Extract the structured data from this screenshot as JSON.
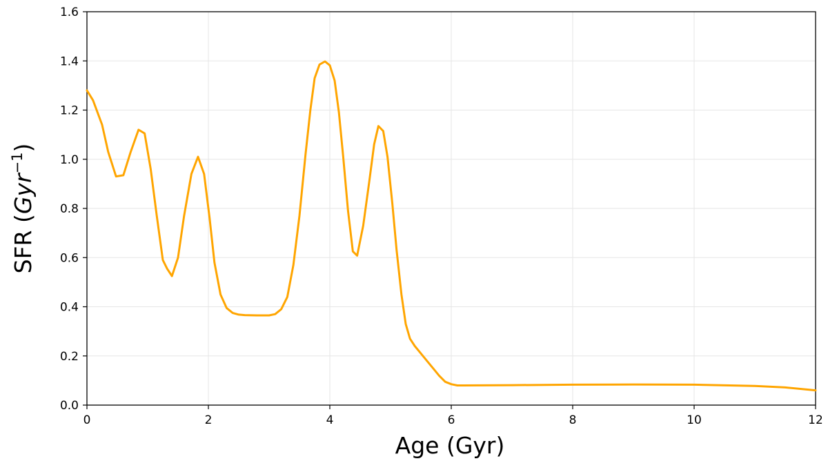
{
  "chart_data": {
    "type": "line",
    "title": "",
    "xlabel": "Age (Gyr)",
    "ylabel_main": "SFR (",
    "ylabel_unit": "Gyr",
    "ylabel_exp": "−1",
    "ylabel_close": ")",
    "xlim": [
      0,
      12
    ],
    "ylim": [
      0,
      1.6
    ],
    "xticks": [
      "0",
      "2",
      "4",
      "6",
      "8",
      "10",
      "12"
    ],
    "xtick_values": [
      0,
      2,
      4,
      6,
      8,
      10,
      12
    ],
    "yticks": [
      "0.0",
      "0.2",
      "0.4",
      "0.6",
      "0.8",
      "1.0",
      "1.2",
      "1.4",
      "1.6"
    ],
    "ytick_values": [
      0.0,
      0.2,
      0.4,
      0.6,
      0.8,
      1.0,
      1.2,
      1.4,
      1.6
    ],
    "grid": true,
    "series": [
      {
        "color": "#FFA500",
        "x": [
          0.0,
          0.1,
          0.25,
          0.35,
          0.48,
          0.6,
          0.72,
          0.85,
          0.95,
          1.05,
          1.15,
          1.25,
          1.32,
          1.4,
          1.5,
          1.6,
          1.72,
          1.83,
          1.93,
          2.02,
          2.1,
          2.2,
          2.3,
          2.4,
          2.5,
          2.6,
          2.8,
          3.0,
          3.1,
          3.2,
          3.3,
          3.4,
          3.5,
          3.6,
          3.68,
          3.75,
          3.83,
          3.92,
          4.0,
          4.08,
          4.15,
          4.22,
          4.3,
          4.38,
          4.45,
          4.55,
          4.65,
          4.73,
          4.8,
          4.88,
          4.95,
          5.03,
          5.1,
          5.18,
          5.25,
          5.32,
          5.4,
          5.5,
          5.6,
          5.7,
          5.8,
          5.9,
          6.0,
          6.1,
          6.2,
          7.0,
          8.0,
          9.0,
          10.0,
          11.0,
          11.5,
          12.0
        ],
        "y": [
          1.28,
          1.24,
          1.14,
          1.03,
          0.93,
          0.935,
          1.03,
          1.12,
          1.105,
          0.96,
          0.77,
          0.59,
          0.555,
          0.525,
          0.6,
          0.77,
          0.94,
          1.01,
          0.94,
          0.76,
          0.58,
          0.45,
          0.395,
          0.375,
          0.368,
          0.366,
          0.365,
          0.365,
          0.37,
          0.39,
          0.44,
          0.57,
          0.77,
          1.02,
          1.2,
          1.33,
          1.385,
          1.398,
          1.382,
          1.32,
          1.19,
          1.01,
          0.79,
          0.625,
          0.608,
          0.73,
          0.91,
          1.06,
          1.135,
          1.115,
          1.01,
          0.82,
          0.63,
          0.45,
          0.33,
          0.27,
          0.24,
          0.21,
          0.18,
          0.15,
          0.12,
          0.095,
          0.085,
          0.08,
          0.08,
          0.081,
          0.083,
          0.084,
          0.083,
          0.078,
          0.072,
          0.06
        ]
      }
    ]
  }
}
